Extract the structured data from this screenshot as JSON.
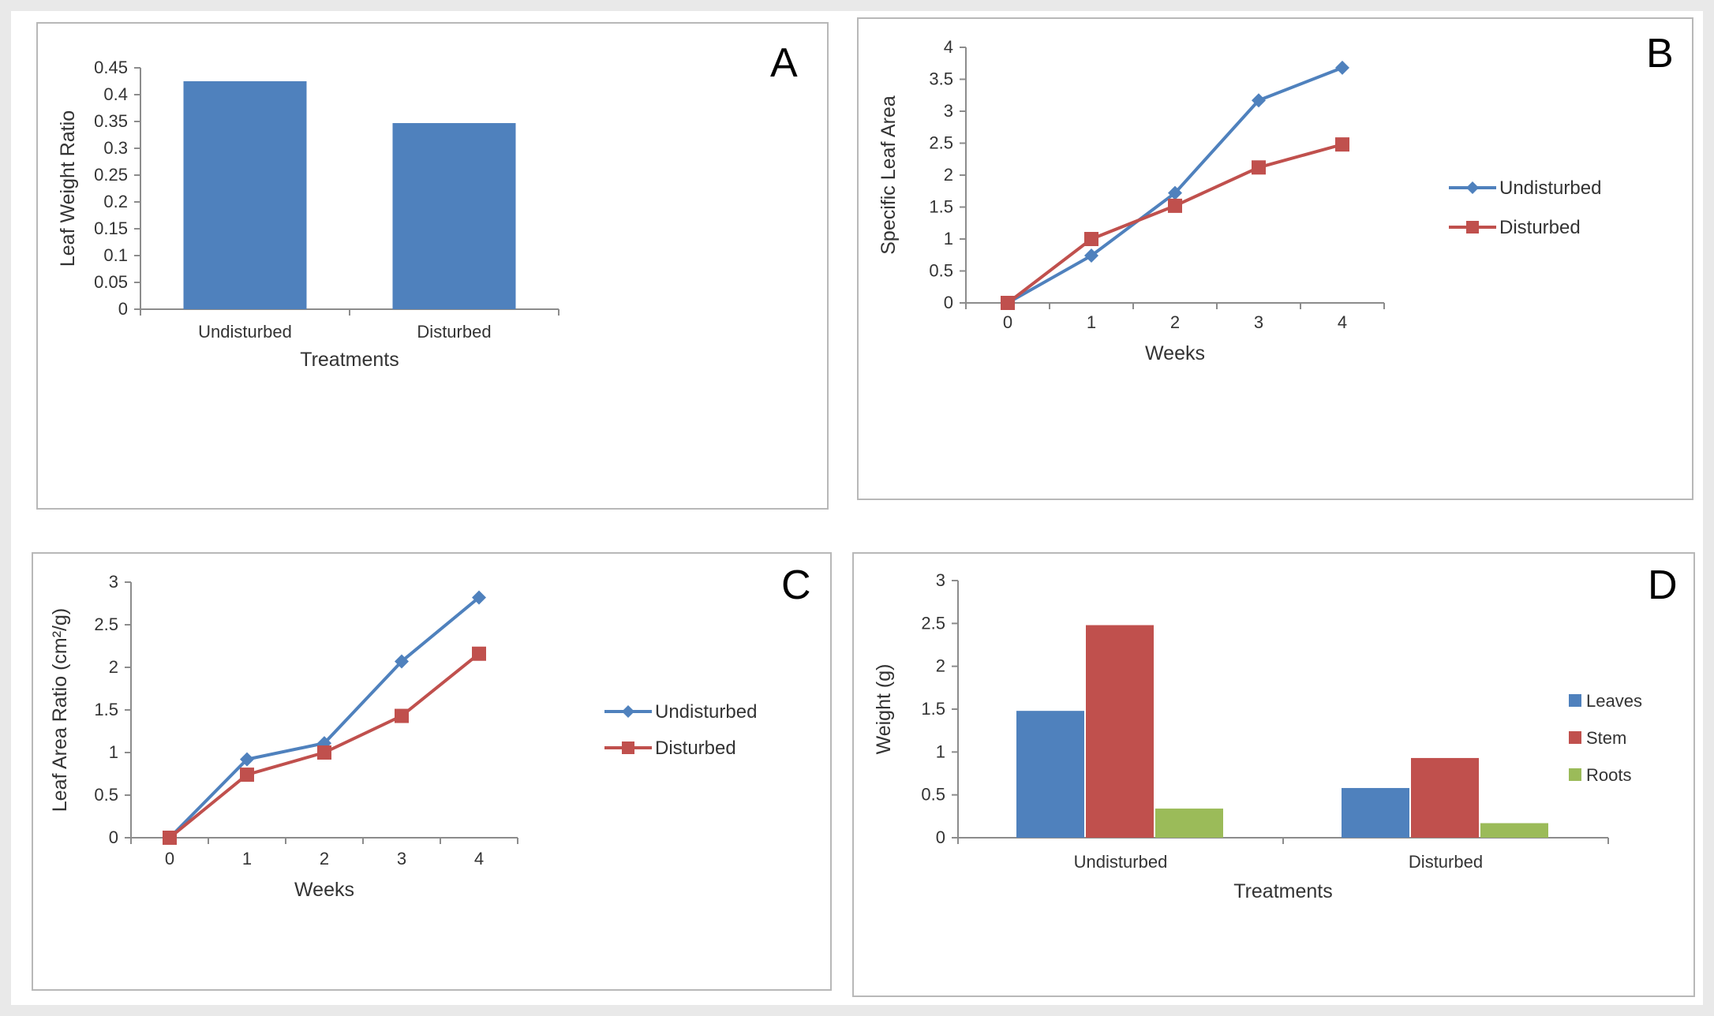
{
  "chart_data": [
    {
      "id": "A",
      "panel_label": "A",
      "type": "bar",
      "categories": [
        "Undisturbed",
        "Disturbed"
      ],
      "series": [
        {
          "values": [
            0.425,
            0.347
          ],
          "color": "#4f81bd"
        }
      ],
      "xlabel": "Treatments",
      "ylabel": "Leaf Weight Ratio",
      "ylim": [
        0,
        0.45
      ],
      "yticks": [
        "0",
        "0.05",
        "0.1",
        "0.15",
        "0.2",
        "0.25",
        "0.3",
        "0.35",
        "0.4",
        "0.45"
      ],
      "grid": false
    },
    {
      "id": "B",
      "panel_label": "B",
      "type": "line",
      "x": [
        "0",
        "1",
        "2",
        "3",
        "4"
      ],
      "series": [
        {
          "name": "Undisturbed",
          "values": [
            0,
            0.74,
            1.72,
            3.17,
            3.68
          ],
          "color": "#4f81bd",
          "marker": "diamond"
        },
        {
          "name": "Disturbed",
          "values": [
            0,
            1.0,
            1.52,
            2.12,
            2.48
          ],
          "color": "#c0504d",
          "marker": "square"
        }
      ],
      "xlabel": "Weeks",
      "ylabel": "Specific Leaf Area",
      "ylim": [
        0,
        4
      ],
      "yticks": [
        "0",
        "0.5",
        "1",
        "1.5",
        "2",
        "2.5",
        "3",
        "3.5",
        "4"
      ],
      "legend": "right",
      "grid": false
    },
    {
      "id": "C",
      "panel_label": "C",
      "type": "line",
      "x": [
        "0",
        "1",
        "2",
        "3",
        "4"
      ],
      "series": [
        {
          "name": "Undisturbed",
          "values": [
            0,
            0.92,
            1.11,
            2.07,
            2.82
          ],
          "color": "#4f81bd",
          "marker": "diamond"
        },
        {
          "name": "Disturbed",
          "values": [
            0,
            0.74,
            1.0,
            1.43,
            2.16
          ],
          "color": "#c0504d",
          "marker": "square"
        }
      ],
      "xlabel": "Weeks",
      "ylabel": "Leaf Area Ratio (cm²/g)",
      "ylim": [
        0,
        3
      ],
      "yticks": [
        "0",
        "0.5",
        "1",
        "1.5",
        "2",
        "2.5",
        "3"
      ],
      "legend": "right",
      "grid": false
    },
    {
      "id": "D",
      "panel_label": "D",
      "type": "bar",
      "categories": [
        "Undisturbed",
        "Disturbed"
      ],
      "series": [
        {
          "name": "Leaves",
          "values": [
            1.48,
            0.58
          ],
          "color": "#4f81bd"
        },
        {
          "name": "Stem",
          "values": [
            2.48,
            0.93
          ],
          "color": "#c0504d"
        },
        {
          "name": "Roots",
          "values": [
            0.34,
            0.17
          ],
          "color": "#9bbb59"
        }
      ],
      "xlabel": "Treatments",
      "ylabel": "Weight (g)",
      "ylim": [
        0,
        3
      ],
      "yticks": [
        "0",
        "0.5",
        "1",
        "1.5",
        "2",
        "2.5",
        "3"
      ],
      "legend": "right",
      "grid": false
    }
  ]
}
